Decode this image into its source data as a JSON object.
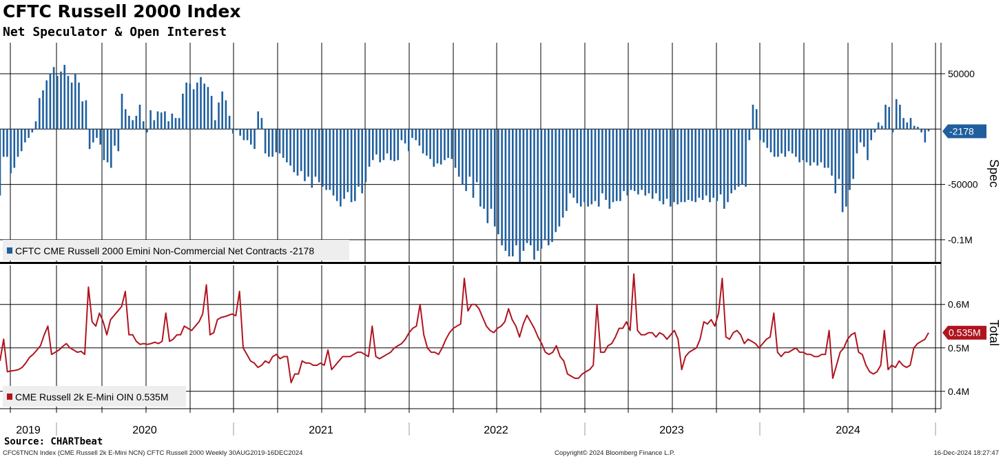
{
  "header": {
    "title": "CFTC Russell 2000 Index",
    "subtitle": "Net Speculator & Open Interest"
  },
  "footer": {
    "source": "Source: CHARTbeat",
    "ticker_info": "CFC6TNCN Index (CME Russell 2k E-Mini NCN) CFTC Russell 2000  Weekly 30AUG2019-16DEC2024",
    "copyright": "Copyright© 2024 Bloomberg Finance L.P.",
    "timestamp": "16-Dec-2024 18:27:47"
  },
  "colors": {
    "spec_bar": "#1f5f9e",
    "total_line": "#b0141f",
    "grid": "#000000",
    "legend_bg": "#eeeeee"
  },
  "chart_data": [
    {
      "type": "bar",
      "panel": "top",
      "axis_title": "Spec",
      "frequency": "weekly",
      "x_start": "2019-08-30",
      "x_end": "2024-12-16",
      "ylim": [
        -120000,
        78000
      ],
      "y_ticks": [
        50000,
        -50000,
        -100000
      ],
      "y_tick_labels": [
        "50000",
        "-50000",
        "-0.1M"
      ],
      "last_value_label": "-2178",
      "grid": true,
      "legend": {
        "text": "CFTC CME Russell 2000 Emini Non-Commercial Net Contracts -2178",
        "position": "bottom-left"
      },
      "series": [
        {
          "name": "CFTC CME Russell 2000 Emini Non-Commercial Net Contracts",
          "values": [
            -60000,
            -25000,
            -25000,
            -40000,
            -35000,
            -25000,
            -20000,
            -12000,
            -8000,
            -3000,
            7000,
            28000,
            35000,
            44000,
            50000,
            56000,
            48000,
            52000,
            58000,
            48000,
            42000,
            50000,
            42000,
            25000,
            26000,
            -18000,
            -12000,
            -8000,
            -14000,
            -28000,
            -30000,
            -35000,
            -15000,
            -20000,
            32000,
            18000,
            12000,
            8000,
            12000,
            22000,
            7000,
            -3000,
            17000,
            8000,
            16000,
            15000,
            16000,
            7000,
            14000,
            10000,
            10000,
            32000,
            42000,
            41000,
            36000,
            42000,
            47000,
            41000,
            38000,
            30000,
            8000,
            24000,
            34000,
            26000,
            12000,
            -4000,
            -1000,
            -6000,
            -10000,
            -10000,
            -14000,
            -18000,
            16000,
            10000,
            -22000,
            -25000,
            -25000,
            -21000,
            -22000,
            -26000,
            -30000,
            -33000,
            -39000,
            -42000,
            -38000,
            -47000,
            -43000,
            -53000,
            -43000,
            -48000,
            -52000,
            -55000,
            -55000,
            -60000,
            -65000,
            -70000,
            -63000,
            -57000,
            -66000,
            -65000,
            -52000,
            -58000,
            -48000,
            -34000,
            -28000,
            -23000,
            -30000,
            -28000,
            -22000,
            -28000,
            -29000,
            -28000,
            -10000,
            -13000,
            -20000,
            -8000,
            -10000,
            -15000,
            -22000,
            -24000,
            -27000,
            -34000,
            -31000,
            -32000,
            -28000,
            -26000,
            -27000,
            -35000,
            -43000,
            -50000,
            -56000,
            -43000,
            -62000,
            -48000,
            -70000,
            -72000,
            -85000,
            -72000,
            -88000,
            -95000,
            -105000,
            -110000,
            -115000,
            -115000,
            -105000,
            -120000,
            -110000,
            -103000,
            -105000,
            -118000,
            -110000,
            -108000,
            -100000,
            -105000,
            -102000,
            -93000,
            -88000,
            -80000,
            -74000,
            -58000,
            -62000,
            -67000,
            -70000,
            -66000,
            -70000,
            -68000,
            -65000,
            -70000,
            -58000,
            -64000,
            -72000,
            -66000,
            -65000,
            -65000,
            -56000,
            -60000,
            -55000,
            -56000,
            -59000,
            -55000,
            -60000,
            -58000,
            -63000,
            -58000,
            -65000,
            -68000,
            -63000,
            -70000,
            -66000,
            -68000,
            -66000,
            -66000,
            -64000,
            -65000,
            -66000,
            -62000,
            -64000,
            -60000,
            -66000,
            -62000,
            -65000,
            -59000,
            -72000,
            -66000,
            -58000,
            -55000,
            -52000,
            -50000,
            -52000,
            -10000,
            22000,
            18000,
            -10000,
            -12000,
            -17000,
            -21000,
            -25000,
            -25000,
            -22000,
            -25000,
            -20000,
            -22000,
            -25000,
            -30000,
            -28000,
            -30000,
            -33000,
            -30000,
            -33000,
            -30000,
            -35000,
            -35000,
            -42000,
            -58000,
            -45000,
            -75000,
            -70000,
            -55000,
            -45000,
            -22000,
            -12000,
            -16000,
            -28000,
            -10000,
            -3000,
            6000,
            3000,
            22000,
            20000,
            -3000,
            27000,
            22000,
            10000,
            6000,
            10000,
            3000,
            2000,
            -3000,
            -12000,
            -2000
          ]
        }
      ]
    },
    {
      "type": "line",
      "panel": "bottom",
      "axis_title": "Total",
      "frequency": "weekly",
      "x_start": "2019-08-30",
      "x_end": "2024-12-16",
      "ylim": [
        0.36,
        0.69
      ],
      "y_ticks": [
        0.6,
        0.5,
        0.4
      ],
      "y_tick_labels": [
        "0.6M",
        "0.5M",
        "0.4M"
      ],
      "last_value_label": "0.535M",
      "grid": true,
      "legend": {
        "text": "CME Russell 2k E-Mini OIN 0.535M",
        "position": "bottom-left"
      },
      "x_tick_labels": [
        "2019",
        "2020",
        "2021",
        "2022",
        "2023",
        "2024"
      ],
      "series": [
        {
          "name": "CME Russell 2k E-Mini OIN",
          "values": [
            0.47,
            0.52,
            0.445,
            0.447,
            0.448,
            0.45,
            0.455,
            0.465,
            0.478,
            0.485,
            0.495,
            0.505,
            0.53,
            0.55,
            0.485,
            0.49,
            0.495,
            0.503,
            0.51,
            0.5,
            0.495,
            0.49,
            0.492,
            0.485,
            0.64,
            0.56,
            0.55,
            0.58,
            0.56,
            0.53,
            0.565,
            0.575,
            0.585,
            0.595,
            0.63,
            0.53,
            0.53,
            0.515,
            0.508,
            0.51,
            0.508,
            0.51,
            0.513,
            0.51,
            0.515,
            0.58,
            0.515,
            0.52,
            0.53,
            0.53,
            0.55,
            0.545,
            0.54,
            0.55,
            0.56,
            0.578,
            0.645,
            0.53,
            0.535,
            0.565,
            0.57,
            0.572,
            0.575,
            0.578,
            0.574,
            0.63,
            0.5,
            0.485,
            0.47,
            0.465,
            0.455,
            0.46,
            0.47,
            0.465,
            0.48,
            0.485,
            0.475,
            0.48,
            0.48,
            0.42,
            0.44,
            0.44,
            0.47,
            0.465,
            0.465,
            0.46,
            0.46,
            0.465,
            0.46,
            0.495,
            0.45,
            0.46,
            0.47,
            0.48,
            0.48,
            0.48,
            0.485,
            0.49,
            0.49,
            0.485,
            0.48,
            0.55,
            0.48,
            0.475,
            0.48,
            0.485,
            0.49,
            0.5,
            0.505,
            0.51,
            0.52,
            0.535,
            0.545,
            0.55,
            0.6,
            0.53,
            0.5,
            0.49,
            0.49,
            0.485,
            0.5,
            0.52,
            0.535,
            0.545,
            0.55,
            0.555,
            0.66,
            0.585,
            0.6,
            0.6,
            0.59,
            0.57,
            0.55,
            0.54,
            0.535,
            0.545,
            0.55,
            0.56,
            0.59,
            0.565,
            0.55,
            0.525,
            0.555,
            0.575,
            0.56,
            0.545,
            0.525,
            0.51,
            0.49,
            0.485,
            0.49,
            0.505,
            0.48,
            0.47,
            0.44,
            0.435,
            0.43,
            0.43,
            0.44,
            0.445,
            0.45,
            0.46,
            0.6,
            0.49,
            0.49,
            0.505,
            0.51,
            0.525,
            0.545,
            0.545,
            0.56,
            0.54,
            0.67,
            0.54,
            0.53,
            0.53,
            0.535,
            0.535,
            0.525,
            0.535,
            0.53,
            0.52,
            0.53,
            0.54,
            0.52,
            0.45,
            0.48,
            0.49,
            0.495,
            0.5,
            0.52,
            0.56,
            0.555,
            0.565,
            0.55,
            0.58,
            0.66,
            0.525,
            0.52,
            0.535,
            0.54,
            0.53,
            0.51,
            0.52,
            0.515,
            0.51,
            0.5,
            0.51,
            0.52,
            0.525,
            0.58,
            0.49,
            0.48,
            0.49,
            0.49,
            0.495,
            0.5,
            0.49,
            0.49,
            0.485,
            0.485,
            0.48,
            0.48,
            0.485,
            0.485,
            0.54,
            0.43,
            0.46,
            0.49,
            0.5,
            0.52,
            0.53,
            0.535,
            0.49,
            0.485,
            0.46,
            0.445,
            0.44,
            0.445,
            0.46,
            0.54,
            0.45,
            0.46,
            0.455,
            0.47,
            0.46,
            0.455,
            0.46,
            0.5,
            0.51,
            0.515,
            0.52,
            0.535
          ]
        }
      ]
    }
  ]
}
